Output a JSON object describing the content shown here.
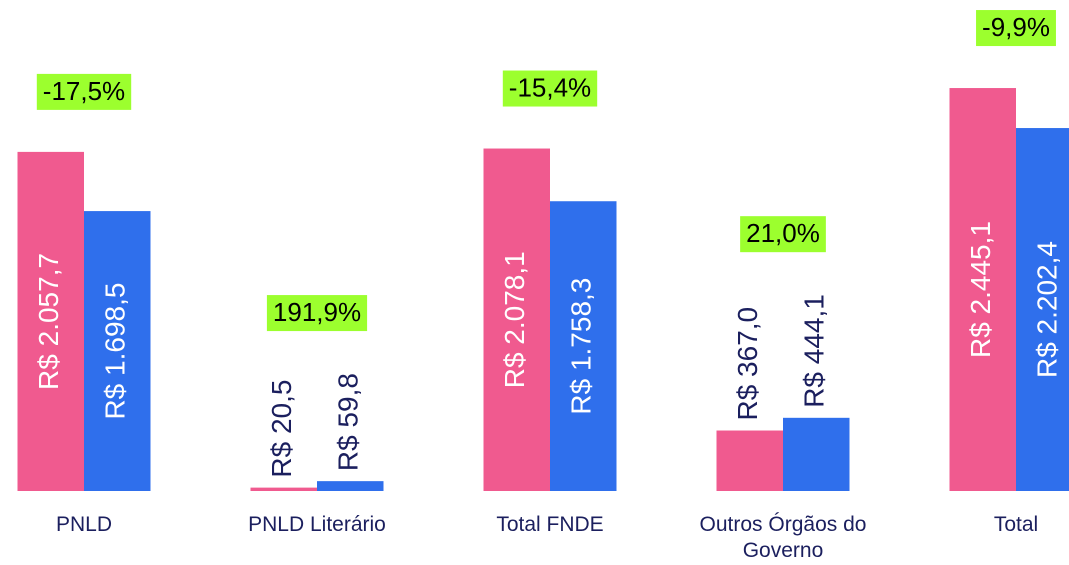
{
  "chart_data": {
    "type": "bar",
    "categories": [
      "PNLD",
      "PNLD Literário",
      "Total FNDE",
      "Outros Órgãos do Governo",
      "Total"
    ],
    "series": [
      {
        "color": "#f05a8f",
        "values": [
          2057.7,
          20.5,
          2078.1,
          367.0,
          2445.1
        ],
        "value_labels": [
          "R$ 2.057,7",
          "R$ 20,5",
          "R$ 2.078,1",
          "R$ 367,0",
          "R$ 2.445,1"
        ]
      },
      {
        "color": "#2f6fec",
        "values": [
          1698.5,
          59.8,
          1758.3,
          444.1,
          2202.4
        ],
        "value_labels": [
          "R$ 1.698,5",
          "R$ 59,8",
          "R$ 1.758,3",
          "R$ 444,1",
          "R$ 2.202,4"
        ]
      }
    ],
    "changes": {
      "color": "#9cff2e",
      "values": [
        -17.5,
        191.9,
        -15.4,
        21.0,
        -9.9
      ],
      "value_labels": [
        "-17,5%",
        "191,9%",
        "-15,4%",
        "21,0%",
        "-9,9%"
      ]
    },
    "ylim": [
      0,
      2500
    ]
  }
}
